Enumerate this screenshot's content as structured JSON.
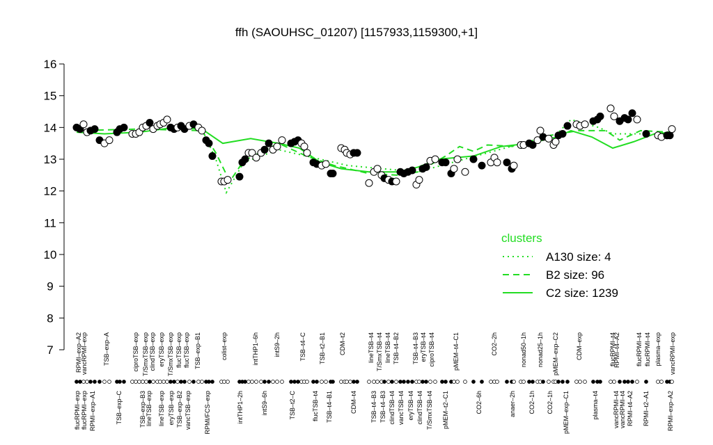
{
  "chart_data": {
    "type": "scatter-line",
    "title": "ffh (SAOUHSC_01207) [1157933,1159300,+1]",
    "xlim": [
      5,
      870
    ],
    "ylim": [
      7,
      16
    ],
    "yticks": [
      7,
      8,
      9,
      10,
      11,
      12,
      13,
      14,
      15,
      16
    ],
    "points": {
      "x": [
        10,
        15,
        20,
        25,
        30,
        36,
        43,
        50,
        57,
        68,
        72,
        78,
        90,
        95,
        100,
        105,
        110,
        115,
        120,
        126,
        130,
        135,
        140,
        145,
        150,
        155,
        160,
        165,
        172,
        178,
        185,
        190,
        196,
        200,
        205,
        218,
        222,
        227,
        244,
        248,
        252,
        257,
        262,
        268,
        275,
        280,
        286,
        292,
        298,
        305,
        318,
        323,
        328,
        333,
        337,
        341,
        350,
        355,
        362,
        368,
        375,
        378,
        390,
        395,
        398,
        403,
        408,
        413,
        430,
        437,
        442,
        448,
        452,
        458,
        463,
        469,
        475,
        480,
        486,
        492,
        498,
        502,
        507,
        512,
        518,
        525,
        535,
        540,
        548,
        552,
        557,
        568,
        580,
        592,
        605,
        610,
        614,
        628,
        635,
        638,
        648,
        652,
        660,
        665,
        672,
        676,
        680,
        688,
        695,
        698,
        702,
        708,
        715,
        728,
        733,
        740,
        752,
        758,
        762,
        777,
        782,
        790,
        797,
        802,
        808,
        815,
        828,
        845,
        850,
        858,
        862,
        865
      ],
      "values": [
        14.0,
        13.95,
        14.1,
        13.85,
        13.9,
        13.95,
        13.6,
        13.5,
        13.6,
        13.85,
        13.95,
        14.0,
        13.8,
        13.8,
        13.85,
        14.0,
        14.05,
        14.15,
        13.95,
        14.05,
        14.1,
        14.15,
        14.25,
        14.0,
        13.95,
        14.0,
        14.05,
        13.95,
        14.05,
        14.1,
        14.0,
        13.9,
        13.6,
        13.5,
        13.1,
        12.3,
        12.3,
        12.35,
        12.45,
        12.9,
        13.0,
        13.2,
        13.2,
        13.05,
        13.2,
        13.3,
        13.5,
        13.3,
        13.4,
        13.6,
        13.5,
        13.55,
        13.6,
        13.5,
        13.4,
        13.2,
        12.9,
        12.85,
        12.8,
        12.85,
        12.55,
        12.55,
        13.35,
        13.3,
        13.2,
        13.15,
        13.2,
        13.2,
        12.25,
        12.6,
        12.7,
        12.5,
        12.4,
        12.35,
        12.3,
        12.3,
        12.6,
        12.55,
        12.6,
        12.65,
        12.2,
        12.35,
        12.7,
        12.75,
        12.95,
        13.0,
        12.9,
        12.9,
        12.55,
        12.7,
        13.0,
        12.6,
        13.0,
        12.8,
        12.9,
        13.05,
        12.9,
        12.9,
        12.7,
        12.8,
        13.45,
        13.45,
        13.5,
        13.45,
        13.6,
        13.9,
        13.7,
        13.65,
        13.45,
        13.55,
        13.75,
        13.8,
        14.05,
        14.1,
        14.05,
        14.1,
        14.2,
        14.25,
        14.35,
        14.6,
        14.35,
        14.2,
        14.3,
        14.25,
        14.45,
        14.25,
        13.8,
        13.75,
        13.7,
        13.75,
        13.75,
        13.95
      ],
      "filled": [
        true,
        true,
        false,
        false,
        true,
        true,
        true,
        false,
        false,
        true,
        true,
        true,
        false,
        false,
        false,
        false,
        false,
        true,
        false,
        false,
        false,
        false,
        false,
        true,
        true,
        false,
        true,
        true,
        false,
        true,
        false,
        false,
        true,
        true,
        true,
        false,
        false,
        false,
        true,
        true,
        true,
        false,
        false,
        false,
        false,
        true,
        true,
        false,
        false,
        false,
        true,
        true,
        true,
        false,
        false,
        false,
        true,
        true,
        false,
        false,
        true,
        true,
        false,
        false,
        false,
        false,
        true,
        true,
        false,
        false,
        false,
        false,
        true,
        false,
        true,
        false,
        true,
        true,
        true,
        true,
        false,
        false,
        true,
        true,
        false,
        false,
        true,
        true,
        true,
        false,
        false,
        false,
        true,
        true,
        false,
        false,
        false,
        true,
        true,
        false,
        false,
        false,
        true,
        true,
        false,
        false,
        true,
        false,
        false,
        false,
        true,
        true,
        true,
        false,
        false,
        false,
        true,
        true,
        true,
        false,
        false,
        true,
        true,
        true,
        true,
        false,
        true,
        false,
        false,
        true,
        true,
        false
      ]
    },
    "legend_title": "clusters",
    "series": [
      {
        "name": "A130 size: 4",
        "color": "#22dd22",
        "dash": "dotted",
        "x": [
          190,
          210,
          225,
          250,
          300,
          400,
          500,
          600,
          700,
          720,
          760,
          780,
          820
        ],
        "values": [
          13.95,
          13.0,
          11.95,
          12.9,
          13.3,
          12.8,
          12.6,
          13.2,
          13.8,
          14.25,
          14.0,
          13.8,
          13.8
        ]
      },
      {
        "name": "B2 size: 96",
        "color": "#22dd22",
        "dash": "dashed",
        "x": [
          10,
          100,
          190,
          210,
          230,
          250,
          300,
          340,
          380,
          430,
          470,
          500,
          540,
          560,
          580,
          600,
          640,
          690,
          730,
          770,
          790,
          820,
          865
        ],
        "values": [
          13.9,
          13.95,
          13.9,
          13.2,
          12.3,
          12.95,
          13.5,
          13.1,
          12.8,
          12.55,
          12.5,
          12.6,
          13.1,
          13.4,
          13.25,
          13.45,
          13.4,
          13.75,
          13.9,
          13.9,
          13.6,
          13.9,
          13.85
        ]
      },
      {
        "name": "C2 size: 1239",
        "color": "#22dd22",
        "dash": "solid",
        "x": [
          10,
          50,
          100,
          150,
          190,
          220,
          260,
          300,
          330,
          360,
          390,
          430,
          470,
          500,
          530,
          580,
          620,
          660,
          700,
          720,
          750,
          780,
          810,
          840,
          865
        ],
        "values": [
          13.85,
          13.8,
          13.85,
          14.0,
          13.95,
          13.5,
          13.65,
          13.5,
          13.35,
          12.9,
          12.7,
          12.6,
          12.6,
          12.75,
          13.0,
          13.1,
          13.4,
          13.5,
          13.7,
          13.9,
          13.7,
          13.35,
          13.55,
          13.8,
          13.85
        ]
      }
    ],
    "labels_top": [
      {
        "x": 13,
        "label": "RPMI–exp–A2"
      },
      {
        "x": 21,
        "label": "vancRPMI–exp"
      },
      {
        "x": 53,
        "label": "TSB–exp–A"
      },
      {
        "x": 95,
        "label": "ciproTSB–exp"
      },
      {
        "x": 109,
        "label": "T/SmxTSB–exp"
      },
      {
        "x": 119,
        "label": "clindTSB–exp"
      },
      {
        "x": 132,
        "label": "eryTSB–exp"
      },
      {
        "x": 145,
        "label": "T/SmxTSB–exp"
      },
      {
        "x": 157,
        "label": "flucTSB–exp"
      },
      {
        "x": 168,
        "label": "flucTSB–exp"
      },
      {
        "x": 184,
        "label": "TSB–exp–B1"
      },
      {
        "x": 222,
        "label": "colist–exp"
      },
      {
        "x": 267,
        "label": "intTHP1–6h"
      },
      {
        "x": 298,
        "label": "intS9–2h"
      },
      {
        "x": 335,
        "label": "TSB–t4–C"
      },
      {
        "x": 363,
        "label": "TSB–t2–B1"
      },
      {
        "x": 392,
        "label": "CDM–t2"
      },
      {
        "x": 433,
        "label": "lineTSB–t4"
      },
      {
        "x": 445,
        "label": "T/SmxTSB–t4"
      },
      {
        "x": 457,
        "label": "lineTSB–t4"
      },
      {
        "x": 469,
        "label": "TSB–t4–B2"
      },
      {
        "x": 497,
        "label": "TSB–t4–B3"
      },
      {
        "x": 508,
        "label": "eryTSB–t4"
      },
      {
        "x": 520,
        "label": "ciproTSB–t4"
      },
      {
        "x": 555,
        "label": "pMEM–t4–C1"
      },
      {
        "x": 610,
        "label": "CO2–2h"
      },
      {
        "x": 652,
        "label": "nonad50–1h"
      },
      {
        "x": 676,
        "label": "nonad25–1h"
      },
      {
        "x": 698,
        "label": "pMEM–exp–C2"
      },
      {
        "x": 732,
        "label": "CDM–exp"
      },
      {
        "x": 780,
        "label": "flucRPMI–t4"
      },
      {
        "x": 786,
        "label": "RPMI–t4–A2"
      },
      {
        "x": 818,
        "label": "flucRPMI–t4"
      },
      {
        "x": 830,
        "label": "flucRPMI–t4"
      },
      {
        "x": 845,
        "label": "plasma–exp"
      },
      {
        "x": 866,
        "label": "vancRPMI–exp"
      }
    ],
    "labels_bottom": [
      {
        "x": 11,
        "label": "flucRPMI–exp"
      },
      {
        "x": 21,
        "label": "flucRPMI–exp"
      },
      {
        "x": 33,
        "label": "RPMI–exp–A1"
      },
      {
        "x": 71,
        "label": "TSB–exp–C"
      },
      {
        "x": 105,
        "label": "TSB–exp–B3"
      },
      {
        "x": 114,
        "label": "lineTSB–exp"
      },
      {
        "x": 132,
        "label": "lineTSB–exp"
      },
      {
        "x": 146,
        "label": "eryTSB–exp"
      },
      {
        "x": 158,
        "label": "TSB–exp–B2"
      },
      {
        "x": 170,
        "label": "vancTSB–exp"
      },
      {
        "x": 198,
        "label": "RPMI/FCS–exp"
      },
      {
        "x": 245,
        "label": "intTHP1–2h"
      },
      {
        "x": 280,
        "label": "intS9–6h"
      },
      {
        "x": 320,
        "label": "TSB–t2–C"
      },
      {
        "x": 353,
        "label": "flucTSB–t4"
      },
      {
        "x": 373,
        "label": "TSB–t4–B1"
      },
      {
        "x": 408,
        "label": "CDM–t4"
      },
      {
        "x": 437,
        "label": "TSB–t4–B3"
      },
      {
        "x": 450,
        "label": "TSB–t4–B3"
      },
      {
        "x": 463,
        "label": "clindTSB–t4"
      },
      {
        "x": 476,
        "label": "vancTSB–t4"
      },
      {
        "x": 490,
        "label": "eryTSB–t4"
      },
      {
        "x": 503,
        "label": "clindTSB–t4"
      },
      {
        "x": 517,
        "label": "T/SmxTSB–t4"
      },
      {
        "x": 540,
        "label": "pMEM–t2–C1"
      },
      {
        "x": 588,
        "label": "CO2–6h"
      },
      {
        "x": 636,
        "label": "anaer–2h"
      },
      {
        "x": 664,
        "label": "CO2–1h"
      },
      {
        "x": 690,
        "label": "CO2–1h"
      },
      {
        "x": 713,
        "label": "pMEM–exp–C1"
      },
      {
        "x": 755,
        "label": "plasma–t4"
      },
      {
        "x": 785,
        "label": "vancRPMI–t4"
      },
      {
        "x": 794,
        "label": "vancRPMI–t4"
      },
      {
        "x": 805,
        "label": "RPMI–t4–A2"
      },
      {
        "x": 828,
        "label": "RPMI–t2–A1"
      },
      {
        "x": 863,
        "label": "RPMI–exp–A2"
      }
    ]
  }
}
